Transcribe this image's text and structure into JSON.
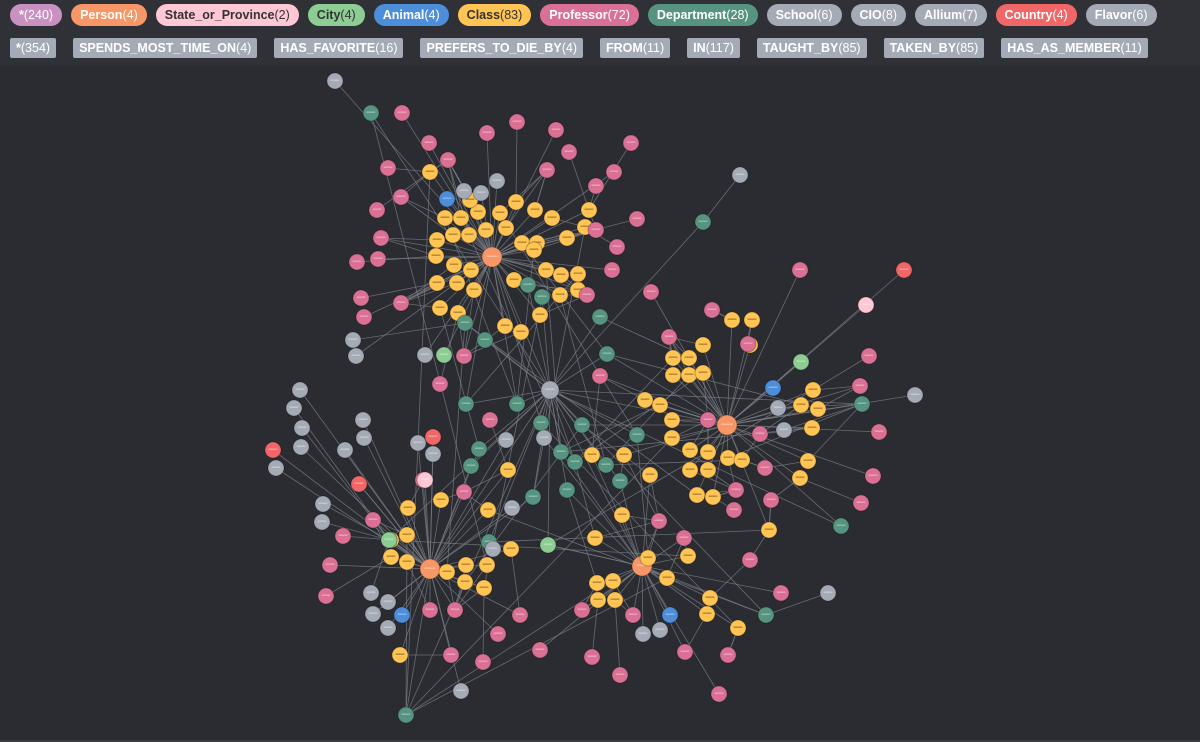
{
  "node_labels": [
    {
      "name": "*",
      "count": "(240)",
      "color": "#c990c0",
      "text_color": "#ffffff",
      "icon": "all-nodes"
    },
    {
      "name": "Person",
      "count": "(4)",
      "color": "#f79767",
      "text_color": "#ffffff"
    },
    {
      "name": "State_or_Province",
      "count": "(2)",
      "color": "#ffc7d4",
      "text_color": "#333333"
    },
    {
      "name": "City",
      "count": "(4)",
      "color": "#8dcc93",
      "text_color": "#333333"
    },
    {
      "name": "Animal",
      "count": "(4)",
      "color": "#4c8eda",
      "text_color": "#ffffff"
    },
    {
      "name": "Class",
      "count": "(83)",
      "color": "#ffc454",
      "text_color": "#333333"
    },
    {
      "name": "Professor",
      "count": "(72)",
      "color": "#da7194",
      "text_color": "#ffffff"
    },
    {
      "name": "Department",
      "count": "(28)",
      "color": "#569480",
      "text_color": "#ffffff"
    },
    {
      "name": "School",
      "count": "(6)",
      "color": "#a5abb6",
      "text_color": "#ffffff"
    },
    {
      "name": "CIO",
      "count": "(8)",
      "color": "#a5abb6",
      "text_color": "#ffffff"
    },
    {
      "name": "Allium",
      "count": "(7)",
      "color": "#a5abb6",
      "text_color": "#ffffff"
    },
    {
      "name": "Country",
      "count": "(4)",
      "color": "#f16667",
      "text_color": "#ffffff"
    },
    {
      "name": "Flavor",
      "count": "(6)",
      "color": "#a5abb6",
      "text_color": "#ffffff"
    }
  ],
  "relationship_types": [
    {
      "name": "*",
      "count": "(354)"
    },
    {
      "name": "SPENDS_MOST_TIME_ON",
      "count": "(4)"
    },
    {
      "name": "HAS_FAVORITE",
      "count": "(16)"
    },
    {
      "name": "PREFERS_TO_DIE_BY",
      "count": "(4)"
    },
    {
      "name": "FROM",
      "count": "(11)"
    },
    {
      "name": "IN",
      "count": "(117)"
    },
    {
      "name": "TAUGHT_BY",
      "count": "(85)"
    },
    {
      "name": "TAKEN_BY",
      "count": "(85)"
    },
    {
      "name": "HAS_AS_MEMBER",
      "count": "(11)"
    }
  ],
  "graph": {
    "colors": {
      "background": "#2a2c31",
      "edge": "#7d8088",
      "Person": "#f79767",
      "Class": "#ffc454",
      "Professor": "#da7194",
      "Department": "#569480",
      "Grey": "#a5abb6",
      "Animal": "#4c8eda",
      "City": "#8dcc93",
      "Country": "#f16667",
      "State": "#ffc7d4"
    },
    "edge_count_visible": 354
  }
}
